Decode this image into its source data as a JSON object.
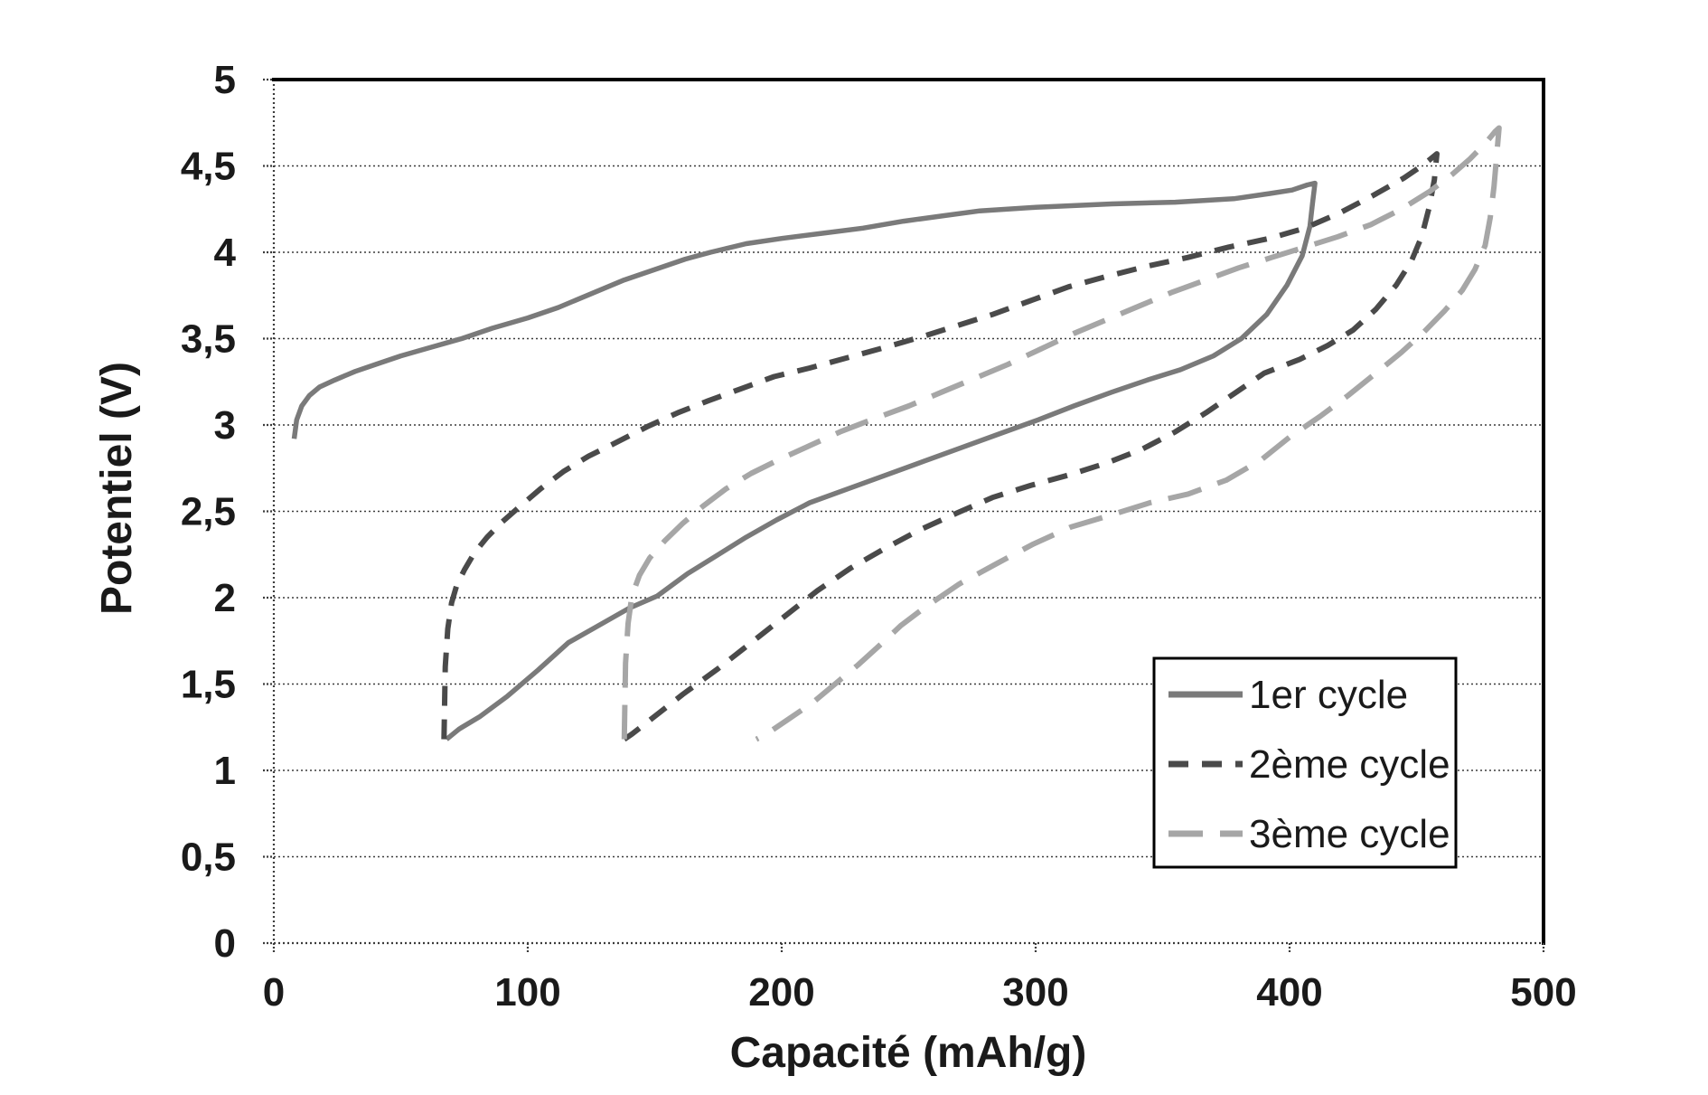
{
  "chart_data": {
    "type": "line",
    "title": "",
    "xlabel": "Capacité (mAh/g)",
    "ylabel": "Potentiel (V)",
    "xlim": [
      0,
      500
    ],
    "ylim": [
      0,
      5
    ],
    "x_ticks": [
      0,
      100,
      200,
      300,
      400,
      500
    ],
    "x_tick_labels": [
      "0",
      "100",
      "200",
      "300",
      "400",
      "500"
    ],
    "y_ticks": [
      0,
      0.5,
      1,
      1.5,
      2,
      2.5,
      3,
      3.5,
      4,
      4.5,
      5
    ],
    "y_tick_labels": [
      "0",
      "0,5",
      "1",
      "1,5",
      "2",
      "2,5",
      "3",
      "3,5",
      "4",
      "4,5",
      "5"
    ],
    "grid": "horizontal-dotted",
    "legend_position": "inside-lower-right",
    "series": [
      {
        "name": "1er cycle",
        "color": "#7a7a7a",
        "style": "solid",
        "dash": [],
        "width": 5.5,
        "points": [
          [
            8,
            2.92
          ],
          [
            9,
            3.03
          ],
          [
            11,
            3.11
          ],
          [
            14,
            3.17
          ],
          [
            18,
            3.22
          ],
          [
            24,
            3.26
          ],
          [
            32,
            3.31
          ],
          [
            40,
            3.35
          ],
          [
            50,
            3.4
          ],
          [
            62,
            3.45
          ],
          [
            74,
            3.5
          ],
          [
            86,
            3.56
          ],
          [
            100,
            3.62
          ],
          [
            112,
            3.68
          ],
          [
            125,
            3.76
          ],
          [
            138,
            3.84
          ],
          [
            150,
            3.9
          ],
          [
            162,
            3.96
          ],
          [
            172,
            4.0
          ],
          [
            186,
            4.05
          ],
          [
            200,
            4.08
          ],
          [
            216,
            4.11
          ],
          [
            232,
            4.14
          ],
          [
            248,
            4.18
          ],
          [
            263,
            4.21
          ],
          [
            278,
            4.24
          ],
          [
            300,
            4.26
          ],
          [
            330,
            4.28
          ],
          [
            355,
            4.29
          ],
          [
            378,
            4.31
          ],
          [
            392,
            4.34
          ],
          [
            401,
            4.36
          ],
          [
            407,
            4.39
          ],
          [
            410,
            4.4
          ],
          [
            409,
            4.28
          ],
          [
            408,
            4.15
          ],
          [
            405,
            3.98
          ],
          [
            399,
            3.81
          ],
          [
            391,
            3.64
          ],
          [
            381,
            3.5
          ],
          [
            370,
            3.4
          ],
          [
            357,
            3.32
          ],
          [
            344,
            3.26
          ],
          [
            330,
            3.19
          ],
          [
            315,
            3.11
          ],
          [
            301,
            3.03
          ],
          [
            286,
            2.95
          ],
          [
            271,
            2.87
          ],
          [
            256,
            2.79
          ],
          [
            241,
            2.71
          ],
          [
            226,
            2.63
          ],
          [
            211,
            2.55
          ],
          [
            198,
            2.45
          ],
          [
            186,
            2.35
          ],
          [
            174,
            2.24
          ],
          [
            163,
            2.14
          ],
          [
            151,
            2.01
          ],
          [
            140,
            1.94
          ],
          [
            128,
            1.84
          ],
          [
            116,
            1.74
          ],
          [
            104,
            1.58
          ],
          [
            92,
            1.43
          ],
          [
            81,
            1.31
          ],
          [
            73,
            1.24
          ],
          [
            68,
            1.18
          ]
        ]
      },
      {
        "name": "2ème cycle",
        "color": "#4a4a4a",
        "style": "dashed",
        "dash": [
          22,
          15
        ],
        "width": 6,
        "points": [
          [
            67,
            1.18
          ],
          [
            67.5,
            1.6
          ],
          [
            68.5,
            1.82
          ],
          [
            70,
            1.97
          ],
          [
            72,
            2.07
          ],
          [
            75,
            2.16
          ],
          [
            79,
            2.26
          ],
          [
            84,
            2.35
          ],
          [
            90,
            2.44
          ],
          [
            97,
            2.53
          ],
          [
            105,
            2.63
          ],
          [
            114,
            2.73
          ],
          [
            124,
            2.82
          ],
          [
            135,
            2.9
          ],
          [
            147,
            2.99
          ],
          [
            159,
            3.07
          ],
          [
            171,
            3.14
          ],
          [
            184,
            3.21
          ],
          [
            197,
            3.28
          ],
          [
            211,
            3.33
          ],
          [
            226,
            3.39
          ],
          [
            241,
            3.45
          ],
          [
            255,
            3.51
          ],
          [
            268,
            3.57
          ],
          [
            283,
            3.64
          ],
          [
            298,
            3.72
          ],
          [
            313,
            3.8
          ],
          [
            328,
            3.86
          ],
          [
            344,
            3.92
          ],
          [
            360,
            3.97
          ],
          [
            376,
            4.03
          ],
          [
            392,
            4.08
          ],
          [
            406,
            4.14
          ],
          [
            420,
            4.23
          ],
          [
            433,
            4.33
          ],
          [
            445,
            4.43
          ],
          [
            453,
            4.51
          ],
          [
            458,
            4.57
          ],
          [
            457,
            4.42
          ],
          [
            455,
            4.26
          ],
          [
            452,
            4.09
          ],
          [
            448,
            3.95
          ],
          [
            442,
            3.81
          ],
          [
            434,
            3.67
          ],
          [
            425,
            3.55
          ],
          [
            415,
            3.46
          ],
          [
            404,
            3.38
          ],
          [
            390,
            3.3
          ],
          [
            378,
            3.18
          ],
          [
            367,
            3.07
          ],
          [
            355,
            2.96
          ],
          [
            342,
            2.86
          ],
          [
            328,
            2.78
          ],
          [
            313,
            2.71
          ],
          [
            298,
            2.65
          ],
          [
            283,
            2.58
          ],
          [
            269,
            2.49
          ],
          [
            254,
            2.39
          ],
          [
            240,
            2.28
          ],
          [
            227,
            2.17
          ],
          [
            214,
            2.04
          ],
          [
            201,
            1.89
          ],
          [
            188,
            1.74
          ],
          [
            175,
            1.59
          ],
          [
            161,
            1.44
          ],
          [
            148,
            1.29
          ],
          [
            141,
            1.21
          ],
          [
            138,
            1.18
          ]
        ]
      },
      {
        "name": "3ème cycle",
        "color": "#a6a6a6",
        "style": "dashed",
        "dash": [
          38,
          19
        ],
        "width": 6,
        "points": [
          [
            138,
            1.18
          ],
          [
            138.5,
            1.62
          ],
          [
            139.5,
            1.85
          ],
          [
            141,
            2.01
          ],
          [
            144,
            2.13
          ],
          [
            148,
            2.23
          ],
          [
            154,
            2.33
          ],
          [
            161,
            2.43
          ],
          [
            169,
            2.53
          ],
          [
            178,
            2.63
          ],
          [
            188,
            2.72
          ],
          [
            199,
            2.8
          ],
          [
            211,
            2.88
          ],
          [
            223,
            2.96
          ],
          [
            237,
            3.04
          ],
          [
            250,
            3.11
          ],
          [
            263,
            3.19
          ],
          [
            276,
            3.27
          ],
          [
            289,
            3.35
          ],
          [
            302,
            3.44
          ],
          [
            315,
            3.53
          ],
          [
            328,
            3.61
          ],
          [
            341,
            3.69
          ],
          [
            354,
            3.77
          ],
          [
            367,
            3.84
          ],
          [
            380,
            3.91
          ],
          [
            393,
            3.97
          ],
          [
            406,
            4.03
          ],
          [
            419,
            4.09
          ],
          [
            432,
            4.16
          ],
          [
            444,
            4.25
          ],
          [
            455,
            4.35
          ],
          [
            464,
            4.45
          ],
          [
            471,
            4.54
          ],
          [
            477,
            4.63
          ],
          [
            481,
            4.7
          ],
          [
            482.5,
            4.72
          ],
          [
            481.5,
            4.55
          ],
          [
            480.5,
            4.38
          ],
          [
            479,
            4.2
          ],
          [
            477,
            4.04
          ],
          [
            473,
            3.9
          ],
          [
            468,
            3.78
          ],
          [
            461,
            3.66
          ],
          [
            453,
            3.54
          ],
          [
            444,
            3.42
          ],
          [
            434,
            3.3
          ],
          [
            423,
            3.17
          ],
          [
            412,
            3.05
          ],
          [
            400,
            2.93
          ],
          [
            389,
            2.8
          ],
          [
            375,
            2.68
          ],
          [
            360,
            2.6
          ],
          [
            345,
            2.55
          ],
          [
            330,
            2.48
          ],
          [
            314,
            2.41
          ],
          [
            299,
            2.31
          ],
          [
            285,
            2.2
          ],
          [
            270,
            2.08
          ],
          [
            256,
            1.94
          ],
          [
            247,
            1.84
          ],
          [
            239,
            1.73
          ],
          [
            230,
            1.61
          ],
          [
            221,
            1.5
          ],
          [
            212,
            1.39
          ],
          [
            202,
            1.29
          ],
          [
            194,
            1.21
          ],
          [
            190,
            1.18
          ]
        ]
      }
    ]
  },
  "legend": {
    "items": [
      {
        "label": "1er cycle"
      },
      {
        "label": "2ème cycle"
      },
      {
        "label": "3ème cycle"
      }
    ]
  },
  "colors": {
    "border": "#000000",
    "grid": "#3c3c3c",
    "tick_text": "#1a1a1a",
    "background": "#ffffff"
  }
}
